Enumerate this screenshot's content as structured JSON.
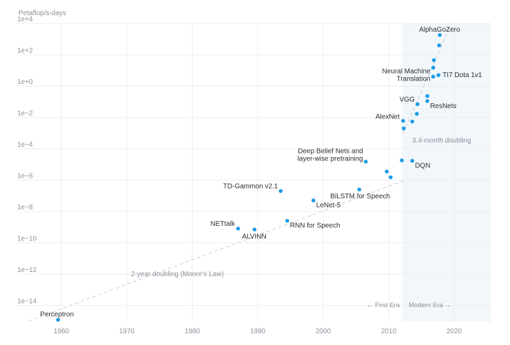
{
  "chart_data": {
    "type": "scatter",
    "ylabel": "Petaflop/s-days",
    "y_scale": "log",
    "ylim": [
      1e-15,
      10000.0
    ],
    "xlim": [
      1955,
      2025
    ],
    "x_ticks": [
      1960,
      1970,
      1980,
      1990,
      2000,
      2010,
      2020
    ],
    "y_ticks": [
      {
        "value": 10000.0,
        "label": "1e+4"
      },
      {
        "value": 100.0,
        "label": "1e+2"
      },
      {
        "value": 1.0,
        "label": "1e+0"
      },
      {
        "value": 0.01,
        "label": "1e−2"
      },
      {
        "value": 0.0001,
        "label": "1e−4"
      },
      {
        "value": 1e-06,
        "label": "1e−6"
      },
      {
        "value": 1e-08,
        "label": "1e−8"
      },
      {
        "value": 1e-10,
        "label": "1e−10"
      },
      {
        "value": 1e-12,
        "label": "1e−12"
      },
      {
        "value": 1e-14,
        "label": "1e−14"
      }
    ],
    "grid": true,
    "points": [
      {
        "x": 1959.5,
        "y": 1.2e-15,
        "label": "Perceptron"
      },
      {
        "x": 1987.0,
        "y": 8e-10,
        "label": "NETtalk"
      },
      {
        "x": 1989.5,
        "y": 7e-10,
        "label": "ALVINN"
      },
      {
        "x": 1993.5,
        "y": 2e-07,
        "label": "TD-Gammon v2.1"
      },
      {
        "x": 1994.5,
        "y": 2.5e-09,
        "label": "RNN for Speech"
      },
      {
        "x": 1998.5,
        "y": 5e-08,
        "label": "LeNet-5"
      },
      {
        "x": 2005.5,
        "y": 2.5e-07,
        "label": "BiLSTM for Speech"
      },
      {
        "x": 2006.5,
        "y": 1.5e-05,
        "label": "Deep Belief Nets and layer-wise pretraining"
      },
      {
        "x": 2009.7,
        "y": 3.5e-06,
        "label": ""
      },
      {
        "x": 2010.3,
        "y": 1.5e-06,
        "label": ""
      },
      {
        "x": 2012.0,
        "y": 1.8e-05,
        "label": ""
      },
      {
        "x": 2012.2,
        "y": 0.006,
        "label": "AlexNet"
      },
      {
        "x": 2012.3,
        "y": 0.002,
        "label": ""
      },
      {
        "x": 2013.6,
        "y": 1.7e-05,
        "label": "DQN"
      },
      {
        "x": 2013.6,
        "y": 0.0055,
        "label": ""
      },
      {
        "x": 2014.3,
        "y": 0.017,
        "label": ""
      },
      {
        "x": 2014.4,
        "y": 0.07,
        "label": "VGG"
      },
      {
        "x": 2015.9,
        "y": 0.11,
        "label": "ResNets"
      },
      {
        "x": 2015.9,
        "y": 0.23,
        "label": ""
      },
      {
        "x": 2016.8,
        "y": 4.0,
        "label": "Neural Machine Translation"
      },
      {
        "x": 2016.8,
        "y": 15.0,
        "label": ""
      },
      {
        "x": 2016.9,
        "y": 45.0,
        "label": ""
      },
      {
        "x": 2017.6,
        "y": 5.0,
        "label": "TI7 Dota 1v1"
      },
      {
        "x": 2017.7,
        "y": 400.0,
        "label": ""
      },
      {
        "x": 2017.8,
        "y": 1800.0,
        "label": "AlphaGoZero"
      }
    ],
    "trend_lines": [
      {
        "label": "2-year doubling (Moore's Law)",
        "from": {
          "x": 1955,
          "y": 1e-15
        },
        "to": {
          "x": 2012.5,
          "y": 1e-06
        }
      },
      {
        "label": "3.4-month doubling",
        "from": {
          "x": 2012.2,
          "y": 0.001
        },
        "to": {
          "x": 2019.6,
          "y": 10000.0
        }
      }
    ],
    "regions": [
      {
        "label": "Modern Era →",
        "from": 2012.0,
        "to": 2025
      },
      {
        "label": "← First Era",
        "from": 1955,
        "to": 2012.0
      }
    ],
    "colors": {
      "point": "#1a9be6",
      "region": "#f1f7fb",
      "trend": "#c9ccd1"
    }
  }
}
